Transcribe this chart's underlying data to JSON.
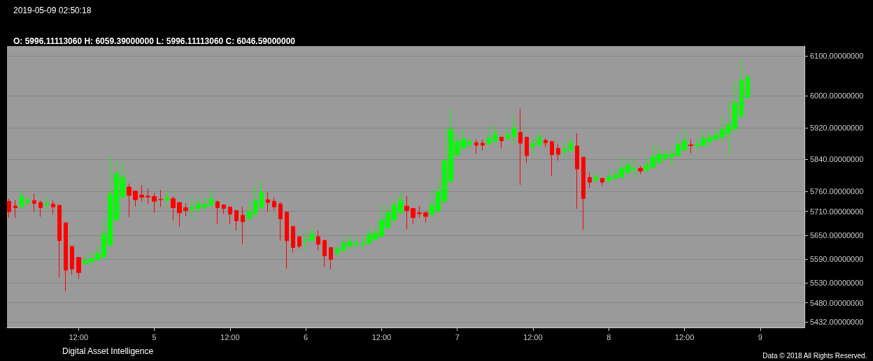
{
  "chart_data": {
    "type": "candlestick",
    "title": "2019-05-09 02:50:18",
    "subtitle": "O: 5996.11113060 H: 6059.39000000 L: 5996.11113060 C: 6046.59000000",
    "annotations": [
      "Digital Asset Intelligence",
      "Data © 2018 All Rights Reserved."
    ],
    "x": [
      "2019-05-04T01:00",
      "2019-05-04T02:00",
      "2019-05-04T03:00",
      "2019-05-04T04:00",
      "2019-05-04T05:00",
      "2019-05-04T06:00",
      "2019-05-04T07:00",
      "2019-05-04T08:00",
      "2019-05-04T09:00",
      "2019-05-04T10:00",
      "2019-05-04T11:00",
      "2019-05-04T12:00",
      "2019-05-04T13:00",
      "2019-05-04T14:00",
      "2019-05-04T15:00",
      "2019-05-04T16:00",
      "2019-05-04T17:00",
      "2019-05-04T18:00",
      "2019-05-04T19:00",
      "2019-05-04T20:00",
      "2019-05-04T21:00",
      "2019-05-04T22:00",
      "2019-05-04T23:00",
      "2019-05-05T00:00",
      "2019-05-05T01:00",
      "2019-05-05T02:00",
      "2019-05-05T03:00",
      "2019-05-05T04:00",
      "2019-05-05T05:00",
      "2019-05-05T06:00",
      "2019-05-05T07:00",
      "2019-05-05T08:00",
      "2019-05-05T09:00",
      "2019-05-05T10:00",
      "2019-05-05T11:00",
      "2019-05-05T12:00",
      "2019-05-05T13:00",
      "2019-05-05T14:00",
      "2019-05-05T15:00",
      "2019-05-05T16:00",
      "2019-05-05T17:00",
      "2019-05-05T18:00",
      "2019-05-05T19:00",
      "2019-05-05T20:00",
      "2019-05-05T21:00",
      "2019-05-05T22:00",
      "2019-05-05T23:00",
      "2019-05-06T00:00",
      "2019-05-06T01:00",
      "2019-05-06T02:00",
      "2019-05-06T03:00",
      "2019-05-06T04:00",
      "2019-05-06T05:00",
      "2019-05-06T06:00",
      "2019-05-06T07:00",
      "2019-05-06T08:00",
      "2019-05-06T09:00",
      "2019-05-06T10:00",
      "2019-05-06T11:00",
      "2019-05-06T12:00",
      "2019-05-06T13:00",
      "2019-05-06T14:00",
      "2019-05-06T15:00",
      "2019-05-06T16:00",
      "2019-05-06T17:00",
      "2019-05-06T18:00",
      "2019-05-06T19:00",
      "2019-05-06T20:00",
      "2019-05-06T21:00",
      "2019-05-06T22:00",
      "2019-05-06T23:00",
      "2019-05-07T00:00",
      "2019-05-07T01:00",
      "2019-05-07T02:00",
      "2019-05-07T03:00",
      "2019-05-07T04:00",
      "2019-05-07T05:00",
      "2019-05-07T06:00",
      "2019-05-07T07:00",
      "2019-05-07T08:00",
      "2019-05-07T09:00",
      "2019-05-07T10:00",
      "2019-05-07T11:00",
      "2019-05-07T12:00",
      "2019-05-07T13:00",
      "2019-05-07T14:00",
      "2019-05-07T15:00",
      "2019-05-07T16:00",
      "2019-05-07T17:00",
      "2019-05-07T18:00",
      "2019-05-07T19:00",
      "2019-05-07T20:00",
      "2019-05-07T21:00",
      "2019-05-07T22:00",
      "2019-05-07T23:00",
      "2019-05-08T00:00",
      "2019-05-08T01:00",
      "2019-05-08T02:00",
      "2019-05-08T03:00",
      "2019-05-08T04:00",
      "2019-05-08T05:00",
      "2019-05-08T06:00",
      "2019-05-08T07:00",
      "2019-05-08T08:00",
      "2019-05-08T09:00",
      "2019-05-08T10:00",
      "2019-05-08T11:00",
      "2019-05-08T12:00",
      "2019-05-08T13:00",
      "2019-05-08T14:00",
      "2019-05-08T15:00",
      "2019-05-08T16:00",
      "2019-05-08T17:00",
      "2019-05-08T18:00",
      "2019-05-08T19:00",
      "2019-05-08T20:00",
      "2019-05-08T21:00",
      "2019-05-08T22:00"
    ],
    "ohlc": [
      [
        5735,
        5742,
        5693,
        5709
      ],
      [
        5723,
        5738,
        5693,
        5719
      ],
      [
        5721,
        5764,
        5716,
        5748
      ],
      [
        5732,
        5746,
        5725,
        5738
      ],
      [
        5737,
        5754,
        5710,
        5730
      ],
      [
        5732,
        5737,
        5696,
        5719
      ],
      [
        5725,
        5748,
        5716,
        5730
      ],
      [
        5728,
        5737,
        5702,
        5721
      ],
      [
        5725,
        5725,
        5544,
        5636
      ],
      [
        5681,
        5681,
        5509,
        5562
      ],
      [
        5622,
        5622,
        5550,
        5565
      ],
      [
        5594,
        5594,
        5540,
        5556
      ],
      [
        5579,
        5599,
        5573,
        5586
      ],
      [
        5582,
        5607,
        5576,
        5591
      ],
      [
        5588,
        5620,
        5587,
        5604
      ],
      [
        5595,
        5693,
        5591,
        5653
      ],
      [
        5624,
        5850,
        5624,
        5754
      ],
      [
        5688,
        5841,
        5688,
        5805
      ],
      [
        5746,
        5833,
        5746,
        5795
      ],
      [
        5771,
        5780,
        5696,
        5750
      ],
      [
        5761,
        5761,
        5722,
        5739
      ],
      [
        5751,
        5776,
        5734,
        5745
      ],
      [
        5748,
        5767,
        5728,
        5746
      ],
      [
        5747,
        5756,
        5707,
        5735
      ],
      [
        5740,
        5763,
        5721,
        5739
      ],
      [
        5739,
        5763,
        5719,
        5744
      ],
      [
        5742,
        5748,
        5687,
        5719
      ],
      [
        5732,
        5732,
        5671,
        5706
      ],
      [
        5719,
        5730,
        5697,
        5712
      ],
      [
        5715,
        5748,
        5690,
        5720
      ],
      [
        5717,
        5748,
        5704,
        5728
      ],
      [
        5721,
        5748,
        5713,
        5728
      ],
      [
        5724,
        5763,
        5723,
        5741
      ],
      [
        5734,
        5737,
        5678,
        5719
      ],
      [
        5726,
        5726,
        5703,
        5717
      ],
      [
        5721,
        5721,
        5678,
        5703
      ],
      [
        5712,
        5712,
        5662,
        5686
      ],
      [
        5700,
        5721,
        5627,
        5684
      ],
      [
        5690,
        5731,
        5690,
        5710
      ],
      [
        5702,
        5773,
        5699,
        5738
      ],
      [
        5718,
        5786,
        5718,
        5759
      ],
      [
        5739,
        5758,
        5709,
        5732
      ],
      [
        5735,
        5745,
        5711,
        5721
      ],
      [
        5728,
        5734,
        5636,
        5691
      ],
      [
        5708,
        5708,
        5566,
        5636
      ],
      [
        5672,
        5672,
        5606,
        5619
      ],
      [
        5646,
        5646,
        5616,
        5622
      ],
      [
        5636,
        5661,
        5611,
        5639
      ],
      [
        5637,
        5669,
        5632,
        5654
      ],
      [
        5646,
        5662,
        5611,
        5627
      ],
      [
        5637,
        5637,
        5570,
        5598
      ],
      [
        5619,
        5619,
        5565,
        5589
      ],
      [
        5604,
        5623,
        5595,
        5615
      ],
      [
        5611,
        5647,
        5608,
        5630
      ],
      [
        5622,
        5653,
        5622,
        5634
      ],
      [
        5627,
        5642,
        5614,
        5630
      ],
      [
        5627,
        5644,
        5617,
        5630
      ],
      [
        5629,
        5668,
        5629,
        5651
      ],
      [
        5639,
        5674,
        5637,
        5656
      ],
      [
        5647,
        5727,
        5647,
        5688
      ],
      [
        5668,
        5729,
        5668,
        5707
      ],
      [
        5687,
        5748,
        5687,
        5725
      ],
      [
        5706,
        5759,
        5706,
        5738
      ],
      [
        5723,
        5749,
        5665,
        5712
      ],
      [
        5717,
        5717,
        5678,
        5694
      ],
      [
        5706,
        5723,
        5693,
        5704
      ],
      [
        5706,
        5710,
        5682,
        5697
      ],
      [
        5701,
        5764,
        5701,
        5725
      ],
      [
        5711,
        5783,
        5711,
        5760
      ],
      [
        5735,
        5919,
        5735,
        5837
      ],
      [
        5785,
        5970,
        5785,
        5916
      ],
      [
        5850,
        5906,
        5850,
        5885
      ],
      [
        5868,
        5917,
        5868,
        5892
      ],
      [
        5878,
        5896,
        5868,
        5884
      ],
      [
        5882,
        5890,
        5855,
        5876
      ],
      [
        5881,
        5890,
        5863,
        5876
      ],
      [
        5878,
        5926,
        5878,
        5895
      ],
      [
        5885,
        5923,
        5885,
        5905
      ],
      [
        5896,
        5898,
        5868,
        5887
      ],
      [
        5892,
        5920,
        5892,
        5903
      ],
      [
        5897,
        5948,
        5878,
        5920
      ],
      [
        5908,
        5968,
        5776,
        5881
      ],
      [
        5896,
        5896,
        5831,
        5850
      ],
      [
        5872,
        5898,
        5855,
        5881
      ],
      [
        5876,
        5910,
        5876,
        5896
      ],
      [
        5888,
        5894,
        5871,
        5882
      ],
      [
        5885,
        5888,
        5798,
        5852
      ],
      [
        5868,
        5878,
        5837,
        5853
      ],
      [
        5861,
        5885,
        5844,
        5867
      ],
      [
        5862,
        5896,
        5862,
        5882
      ],
      [
        5874,
        5906,
        5716,
        5816
      ],
      [
        5846,
        5846,
        5663,
        5742
      ],
      [
        5795,
        5807,
        5769,
        5783
      ],
      [
        5789,
        5807,
        5780,
        5796
      ],
      [
        5793,
        5793,
        5774,
        5783
      ],
      [
        5787,
        5815,
        5777,
        5796
      ],
      [
        5793,
        5812,
        5789,
        5801
      ],
      [
        5795,
        5846,
        5795,
        5818
      ],
      [
        5807,
        5844,
        5807,
        5826
      ],
      [
        5814,
        5844,
        5793,
        5818
      ],
      [
        5818,
        5824,
        5804,
        5811
      ],
      [
        5812,
        5843,
        5812,
        5826
      ],
      [
        5820,
        5876,
        5820,
        5846
      ],
      [
        5833,
        5875,
        5830,
        5853
      ],
      [
        5843,
        5863,
        5836,
        5853
      ],
      [
        5847,
        5869,
        5824,
        5854
      ],
      [
        5850,
        5906,
        5850,
        5878
      ],
      [
        5864,
        5916,
        5864,
        5887
      ],
      [
        5877,
        5891,
        5856,
        5875
      ],
      [
        5875,
        5894,
        5861,
        5878
      ],
      [
        5875,
        5914,
        5872,
        5892
      ],
      [
        5885,
        5913,
        5871,
        5896
      ],
      [
        5891,
        5914,
        5891,
        5902
      ],
      [
        5896,
        5949,
        5884,
        5916
      ],
      [
        5906,
        5986,
        5847,
        5927
      ],
      [
        5916,
        6036,
        5916,
        5983
      ],
      [
        5948,
        6092,
        5948,
        6040
      ],
      [
        5996.1111306,
        6059.39,
        5996.1111306,
        6046.59
      ]
    ],
    "colors": [
      "#ff0000",
      "#ff0000",
      "#00ff00",
      "#00ff00",
      "#ff0000",
      "#ff0000",
      "#00ff00",
      "#ff0000",
      "#ff0000",
      "#ff0000",
      "#ff0000",
      "#ff0000",
      "#00ff00",
      "#00ff00",
      "#00ff00",
      "#00ff00",
      "#00ff00",
      "#00ff00",
      "#00ff00",
      "#ff0000",
      "#ff0000",
      "#ff0000",
      "#ff0000",
      "#ff0000",
      "#ff0000",
      "#00ff00",
      "#ff0000",
      "#ff0000",
      "#ff0000",
      "#00ff00",
      "#00ff00",
      "#00ff00",
      "#00ff00",
      "#ff0000",
      "#ff0000",
      "#ff0000",
      "#ff0000",
      "#ff0000",
      "#00ff00",
      "#00ff00",
      "#00ff00",
      "#ff0000",
      "#ff0000",
      "#ff0000",
      "#ff0000",
      "#ff0000",
      "#ff0000",
      "#00ff00",
      "#00ff00",
      "#ff0000",
      "#ff0000",
      "#ff0000",
      "#00ff00",
      "#00ff00",
      "#00ff00",
      "#00ff00",
      "#00ff00",
      "#00ff00",
      "#00ff00",
      "#00ff00",
      "#00ff00",
      "#00ff00",
      "#00ff00",
      "#ff0000",
      "#ff0000",
      "#ff0000",
      "#ff0000",
      "#00ff00",
      "#00ff00",
      "#00ff00",
      "#00ff00",
      "#00ff00",
      "#00ff00",
      "#00ff00",
      "#ff0000",
      "#ff0000",
      "#00ff00",
      "#00ff00",
      "#ff0000",
      "#00ff00",
      "#00ff00",
      "#ff0000",
      "#ff0000",
      "#00ff00",
      "#00ff00",
      "#ff0000",
      "#ff0000",
      "#ff0000",
      "#00ff00",
      "#00ff00",
      "#ff0000",
      "#ff0000",
      "#ff0000",
      "#00ff00",
      "#ff0000",
      "#00ff00",
      "#00ff00",
      "#00ff00",
      "#00ff00",
      "#00ff00",
      "#ff0000",
      "#00ff00",
      "#00ff00",
      "#00ff00",
      "#00ff00",
      "#00ff00",
      "#00ff00",
      "#00ff00",
      "#ff0000",
      "#00ff00",
      "#00ff00",
      "#00ff00",
      "#00ff00",
      "#00ff00",
      "#00ff00",
      "#00ff00",
      "#00ff00",
      "#00ff00"
    ],
    "xlim": [
      "2019-05-04T00:40",
      "2019-05-09T07:00"
    ],
    "xticks": [
      {
        "value": "2019-05-04T12:00",
        "label": "12:00"
      },
      {
        "value": "2019-05-05T00:00",
        "label": "5"
      },
      {
        "value": "2019-05-05T12:00",
        "label": "12:00"
      },
      {
        "value": "2019-05-06T00:00",
        "label": "6"
      },
      {
        "value": "2019-05-06T12:00",
        "label": "12:00"
      },
      {
        "value": "2019-05-07T00:00",
        "label": "7"
      },
      {
        "value": "2019-05-07T12:00",
        "label": "12:00"
      },
      {
        "value": "2019-05-08T00:00",
        "label": "8"
      },
      {
        "value": "2019-05-08T12:00",
        "label": "12:00"
      },
      {
        "value": "2019-05-09T00:00",
        "label": "9"
      }
    ],
    "ylim": [
      5418,
      6125
    ],
    "yticks": [
      {
        "value": 5432,
        "label": "5432.00000000"
      },
      {
        "value": 5480,
        "label": "5480.00000000"
      },
      {
        "value": 5530,
        "label": "5530.00000000"
      },
      {
        "value": 5590,
        "label": "5590.00000000"
      },
      {
        "value": 5650,
        "label": "5650.00000000"
      },
      {
        "value": 5710,
        "label": "5710.00000000"
      },
      {
        "value": 5760,
        "label": "5760.00000000"
      },
      {
        "value": 5840,
        "label": "5840.00000000"
      },
      {
        "value": 5920,
        "label": "5920.00000000"
      },
      {
        "value": 6000,
        "label": "6000.00000000"
      },
      {
        "value": 6100,
        "label": "6100.00000000"
      }
    ],
    "grid": "y"
  }
}
